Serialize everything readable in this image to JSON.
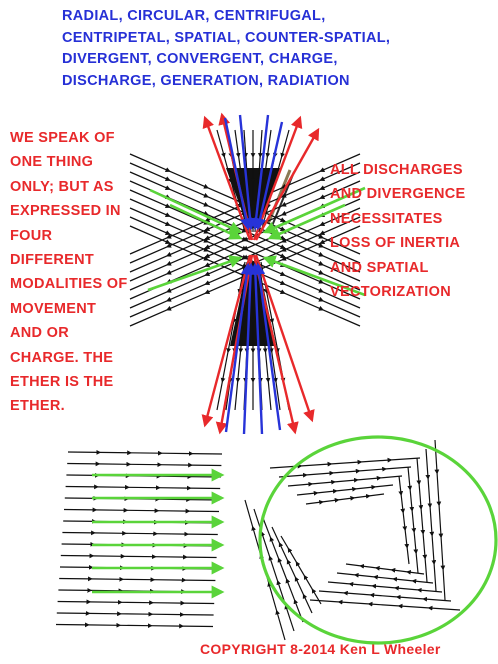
{
  "colors": {
    "header_text": "#2630d6",
    "statement_text": "#e8292b",
    "arrow_red": "#e8292b",
    "arrow_blue": "#2733d8",
    "arrow_green": "#5ad43a",
    "field_lines": "#111111",
    "circle": "#5ad43a"
  },
  "header": {
    "lines": [
      "RADIAL, CIRCULAR, CENTRIFUGAL,",
      "CENTRIPETAL, SPATIAL, COUNTER-SPATIAL,",
      "DIVERGENT, CONVERGENT, CHARGE,",
      "DISCHARGE, GENERATION, RADIATION"
    ]
  },
  "left_statement": {
    "lines": [
      "WE SPEAK OF",
      "ONE THING",
      "ONLY; BUT AS",
      "EXPRESSED IN",
      "FOUR",
      "DIFFERENT",
      "MODALITIES OF",
      "MOVEMENT",
      "AND OR",
      "CHARGE. THE",
      "ETHER IS THE",
      "ETHER."
    ]
  },
  "right_statement": {
    "lines": [
      "ALL DISCHARGES",
      "AND DIVERGENCE",
      "NECESSITATES",
      "LOSS OF INERTIA",
      "AND SPATIAL",
      "VECTORIZATION"
    ]
  },
  "copyright": "COPYRIGHT 8-2014 Ken L Wheeler"
}
